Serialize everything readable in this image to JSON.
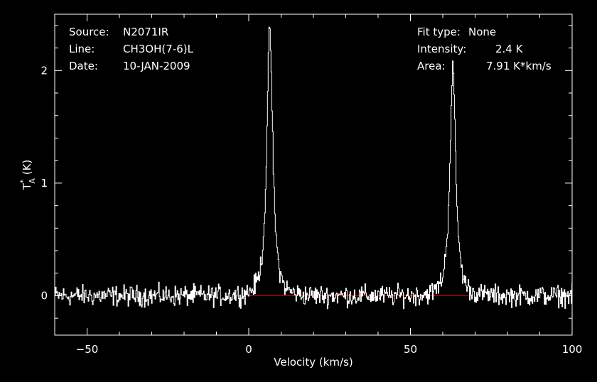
{
  "chart_data": {
    "type": "line",
    "xlabel": "Velocity (km/s)",
    "ylabel_main": "T",
    "ylabel_sup": "*",
    "ylabel_sub": "A",
    "ylabel_unit": " (K)",
    "xlim": [
      -60,
      100
    ],
    "ylim": [
      -0.35,
      2.5
    ],
    "xticks": [
      -50,
      0,
      50,
      100
    ],
    "yticks": [
      0,
      1,
      2
    ],
    "baseline": 0,
    "colors": {
      "background": "#000000",
      "axes": "#ffffff",
      "spectrum": "#ffffff",
      "baseline": "#cc0000"
    },
    "series": [
      {
        "peaks": [
          {
            "center": 6.4,
            "height": 2.4
          },
          {
            "center": 63.0,
            "height": 2.05
          }
        ]
      }
    ]
  },
  "info": {
    "source_label": "Source:",
    "source_value": "N2071IR",
    "line_label": "Line:",
    "line_value": "CH3OH(7-6)L",
    "date_label": "Date:",
    "date_value": "10-JAN-2009",
    "fit_label": "Fit type:",
    "fit_value": "None",
    "intensity_label": "Intensity:",
    "intensity_value": "2.4 K",
    "area_label": "Area:",
    "area_value": "7.91 K*km/s"
  }
}
